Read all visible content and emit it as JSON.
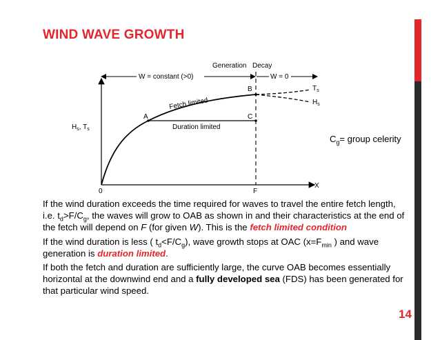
{
  "slide": {
    "title": "WIND WAVE GROWTH",
    "page_number": "14"
  },
  "figure": {
    "labels": {
      "generation": "Generation",
      "decay": "Decay",
      "w_constant": "W = constant (>0)",
      "w_zero": "W = 0",
      "fetch_limited": "Fetch limited",
      "duration_limited": "Duration limited",
      "point_a": "A",
      "point_b": "B",
      "point_c": "C",
      "ts": "T",
      "ts_sub": "s",
      "hs": "H",
      "hs_sub": "s",
      "y_axis": "H",
      "y_axis_sub1": "s",
      "y_axis_mid": ", T",
      "y_axis_sub2": "s",
      "origin": "0",
      "f_mark": "F",
      "x_axis": "X"
    }
  },
  "note": {
    "cg_main": "C",
    "cg_sub": "g",
    "cg_rest": "= group celerity"
  },
  "paragraphs": {
    "p1": {
      "t1": "If the wind duration exceeds the time required for waves to travel the entire fetch length, i.e. t",
      "t1_sub": "d",
      "t2": ">F/C",
      "t2_sub": "g",
      "t3": ", the waves will grow to OAB as shown in and their characteristics at the end of the fetch will depend on ",
      "f": "F",
      "t4": " (for given ",
      "w": "W",
      "t5": "). This is the ",
      "highlight": "fetch limited condition"
    },
    "p2": {
      "t1": "If the wind duration is less ( t",
      "t1_sub": "d",
      "t2": "<F/C",
      "t2_sub": "g",
      "t3": "), wave growth stops at OAC (x=F",
      "t3_sub": "min",
      "t4": " ) and wave generation is ",
      "highlight": "duration limited",
      "t5": "."
    },
    "p3": {
      "t1": "If both the fetch and duration are sufficiently large, the curve OAB becomes essentially horizontal at the downwind end and a ",
      "bold": "fully developed sea",
      "t2": " (FDS) has been generated for that particular wind speed."
    }
  }
}
